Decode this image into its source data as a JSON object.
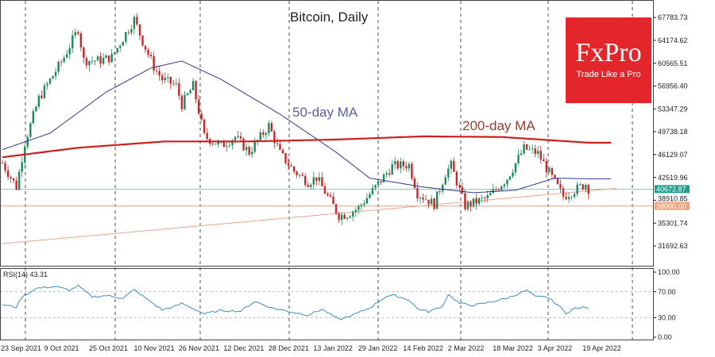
{
  "chart_data": {
    "type": "line",
    "title": "Bitcoin, Daily",
    "brand": {
      "name": "FxPro",
      "tagline": "Trade Like a Pro"
    },
    "price_ticks": [
      67783.73,
      64174.62,
      60565.51,
      56956.4,
      53347.29,
      49738.18,
      46129.07,
      42519.96,
      38910.85,
      35301.74,
      31692.63
    ],
    "price_labels": [
      "67783.73",
      "64174.62",
      "60565.51",
      "56956.40",
      "53347.29",
      "49738.18",
      "46129.07",
      "42519.96",
      "38910.85",
      "35301.74",
      "31692.63"
    ],
    "current_price": {
      "value": 40672.87,
      "label": "40672.87",
      "color": "#1f9e8e"
    },
    "support_level": {
      "value": 38000,
      "label": "38000.00",
      "color": "#f0a07a"
    },
    "trendline": {
      "start": [
        "2021-09-23",
        32050
      ],
      "end": [
        "2022-04-30",
        40800
      ]
    },
    "x_labels": [
      "23 Sep 2021",
      "9 Oct 2021",
      "25 Oct 2021",
      "10 Nov 2021",
      "26 Nov 2021",
      "12 Dec 2021",
      "28 Dec 2021",
      "13 Jan 2022",
      "29 Jan 2022",
      "14 Feb 2022",
      "2 Mar 2022",
      "18 Mar 2022",
      "3 Apr 2022",
      "19 Apr 2022"
    ],
    "x_dates": [
      "2021-09-23",
      "2021-10-09",
      "2021-10-25",
      "2021-11-10",
      "2021-11-26",
      "2021-12-12",
      "2021-12-28",
      "2022-01-13",
      "2022-01-29",
      "2022-02-14",
      "2022-03-02",
      "2022-03-18",
      "2022-04-03",
      "2022-04-19"
    ],
    "close": [
      [
        "2021-09-23",
        44800
      ],
      [
        "2021-09-28",
        41000
      ],
      [
        "2021-10-01",
        48000
      ],
      [
        "2021-10-06",
        55000
      ],
      [
        "2021-10-15",
        61500
      ],
      [
        "2021-10-20",
        66000
      ],
      [
        "2021-10-22",
        61000
      ],
      [
        "2021-10-28",
        61000
      ],
      [
        "2021-11-01",
        61500
      ],
      [
        "2021-11-09",
        67500
      ],
      [
        "2021-11-12",
        64000
      ],
      [
        "2021-11-16",
        60000
      ],
      [
        "2021-11-19",
        58000
      ],
      [
        "2021-11-24",
        57000
      ],
      [
        "2021-11-26",
        54000
      ],
      [
        "2021-11-30",
        57000
      ],
      [
        "2021-12-04",
        49000
      ],
      [
        "2021-12-10",
        47500
      ],
      [
        "2021-12-15",
        48900
      ],
      [
        "2021-12-20",
        46500
      ],
      [
        "2021-12-27",
        50700
      ],
      [
        "2021-12-31",
        46300
      ],
      [
        "2022-01-05",
        43500
      ],
      [
        "2022-01-10",
        41800
      ],
      [
        "2022-01-13",
        42500
      ],
      [
        "2022-01-21",
        36500
      ],
      [
        "2022-01-24",
        36700
      ],
      [
        "2022-01-28",
        37700
      ],
      [
        "2022-02-04",
        41500
      ],
      [
        "2022-02-09",
        44300
      ],
      [
        "2022-02-15",
        44500
      ],
      [
        "2022-02-18",
        40000
      ],
      [
        "2022-02-24",
        38300
      ],
      [
        "2022-02-28",
        43200
      ],
      [
        "2022-03-02",
        44400
      ],
      [
        "2022-03-07",
        38000
      ],
      [
        "2022-03-15",
        39300
      ],
      [
        "2022-03-22",
        42400
      ],
      [
        "2022-03-28",
        47100
      ],
      [
        "2022-04-02",
        46300
      ],
      [
        "2022-04-06",
        43200
      ],
      [
        "2022-04-11",
        39500
      ],
      [
        "2022-04-15",
        40500
      ],
      [
        "2022-04-19",
        41500
      ],
      [
        "2022-04-20",
        40700
      ]
    ],
    "series": [
      {
        "name": "50-day MA",
        "label": "50-day MA",
        "color": "#2e3a8c",
        "points": [
          [
            "2021-09-23",
            46900
          ],
          [
            "2021-10-10",
            49500
          ],
          [
            "2021-10-30",
            56000
          ],
          [
            "2021-11-15",
            59800
          ],
          [
            "2021-11-26",
            60900
          ],
          [
            "2021-12-10",
            58000
          ],
          [
            "2021-12-31",
            52500
          ],
          [
            "2022-01-20",
            46500
          ],
          [
            "2022-02-01",
            42400
          ],
          [
            "2022-02-20",
            41000
          ],
          [
            "2022-03-10",
            40100
          ],
          [
            "2022-03-25",
            40500
          ],
          [
            "2022-04-08",
            42400
          ],
          [
            "2022-04-20",
            42300
          ]
        ]
      },
      {
        "name": "200-day MA",
        "label": "200-day MA",
        "color": "#cc1f1f",
        "points": [
          [
            "2021-09-23",
            45700
          ],
          [
            "2021-10-20",
            47200
          ],
          [
            "2021-11-20",
            48200
          ],
          [
            "2021-12-20",
            48200
          ],
          [
            "2022-01-20",
            48500
          ],
          [
            "2022-02-20",
            49000
          ],
          [
            "2022-03-20",
            48900
          ],
          [
            "2022-04-20",
            48000
          ]
        ]
      }
    ],
    "rsi": {
      "label": "RSI(14) 43.31",
      "levels": [
        100,
        70,
        30,
        0
      ],
      "level_labels": [
        "100.00",
        "70.00",
        "30.00",
        "0.00"
      ],
      "color": "#3a8dc4",
      "points": [
        [
          "2021-09-23",
          50
        ],
        [
          "2021-09-28",
          46
        ],
        [
          "2021-09-30",
          62
        ],
        [
          "2021-10-05",
          75
        ],
        [
          "2021-10-12",
          78
        ],
        [
          "2021-10-17",
          72
        ],
        [
          "2021-10-20",
          79
        ],
        [
          "2021-10-25",
          62
        ],
        [
          "2021-10-30",
          64
        ],
        [
          "2021-11-05",
          60
        ],
        [
          "2021-11-09",
          73
        ],
        [
          "2021-11-14",
          57
        ],
        [
          "2021-11-19",
          42
        ],
        [
          "2021-11-24",
          48
        ],
        [
          "2021-11-26",
          52
        ],
        [
          "2021-12-04",
          36
        ],
        [
          "2021-12-10",
          41
        ],
        [
          "2021-12-17",
          40
        ],
        [
          "2021-12-22",
          55
        ],
        [
          "2021-12-28",
          45
        ],
        [
          "2022-01-05",
          38
        ],
        [
          "2022-01-10",
          34
        ],
        [
          "2022-01-15",
          43
        ],
        [
          "2022-01-21",
          27
        ],
        [
          "2022-01-26",
          34
        ],
        [
          "2022-02-01",
          45
        ],
        [
          "2022-02-07",
          63
        ],
        [
          "2022-02-10",
          64
        ],
        [
          "2022-02-15",
          57
        ],
        [
          "2022-02-18",
          44
        ],
        [
          "2022-02-22",
          39
        ],
        [
          "2022-02-27",
          48
        ],
        [
          "2022-03-01",
          66
        ],
        [
          "2022-03-05",
          52
        ],
        [
          "2022-03-10",
          49
        ],
        [
          "2022-03-15",
          53
        ],
        [
          "2022-03-22",
          60
        ],
        [
          "2022-03-29",
          72
        ],
        [
          "2022-04-01",
          62
        ],
        [
          "2022-04-05",
          62
        ],
        [
          "2022-04-09",
          50
        ],
        [
          "2022-04-12",
          37
        ],
        [
          "2022-04-15",
          44
        ],
        [
          "2022-04-19",
          46
        ],
        [
          "2022-04-20",
          43
        ]
      ]
    }
  }
}
